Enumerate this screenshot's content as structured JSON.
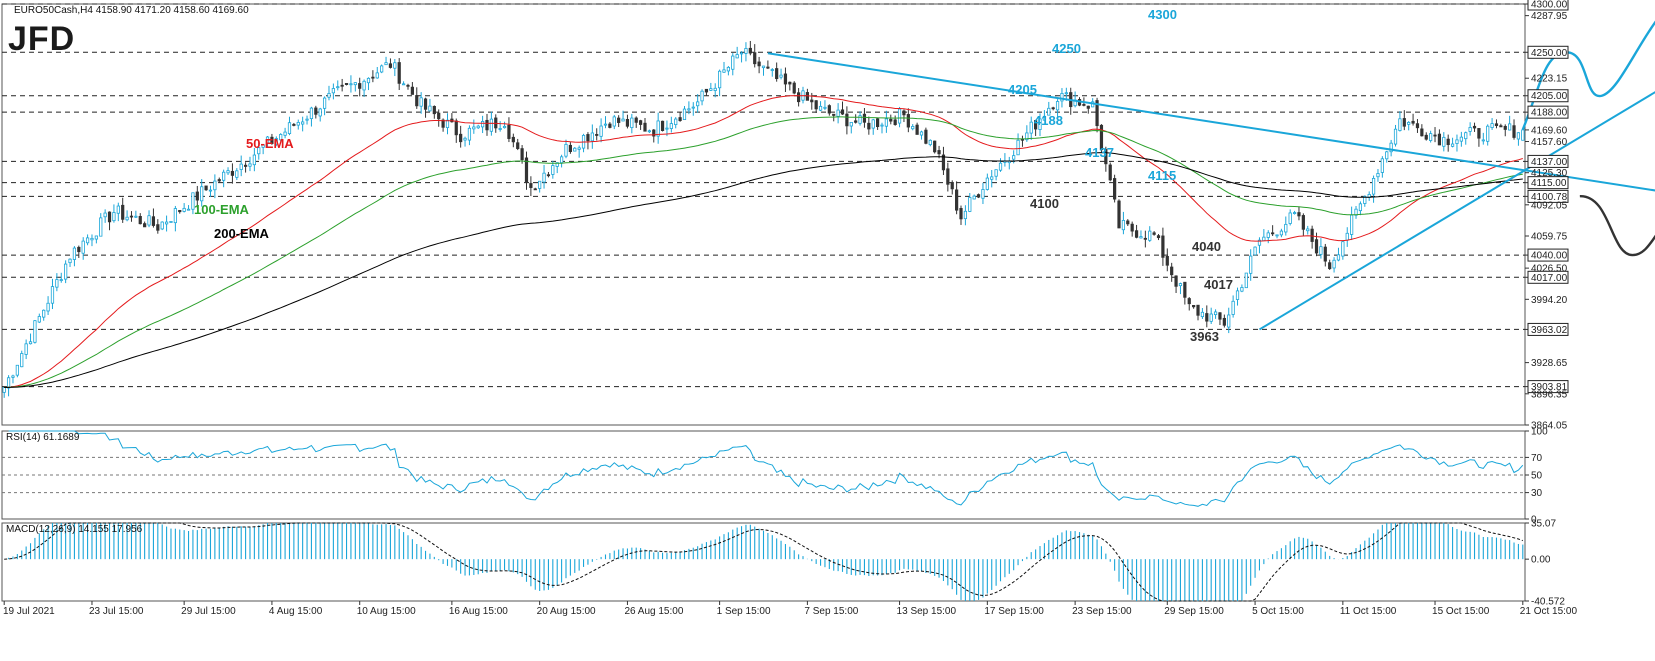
{
  "header": {
    "symbol_line": "EURO50Cash,H4  4158.90 4171.20 4158.60 4169.60",
    "logo": "JFD"
  },
  "colors": {
    "bullish": "#1aa6d9",
    "bearish": "#333333",
    "ema50": "#e41a1c",
    "ema100": "#2ca02c",
    "ema200": "#000000",
    "trendline": "#1aa6d9",
    "projection_up": "#1aa6d9",
    "projection_down": "#333333"
  },
  "chart_data": [
    {
      "type": "candlestick",
      "symbol": "EURO50Cash",
      "timeframe": "H4",
      "ohlc_last": {
        "open": 4158.9,
        "high": 4171.2,
        "low": 4158.6,
        "close": 4169.6
      },
      "ylim": [
        3864.05,
        4300.0
      ],
      "y_ticks": [
        4300.0,
        4287.95,
        4250.0,
        4223.15,
        4205.0,
        4188.0,
        4169.6,
        4157.6,
        4137.0,
        4125.3,
        4115.0,
        4100.78,
        4092.05,
        4059.75,
        4040.0,
        4026.5,
        4017.0,
        3994.2,
        3963.02,
        3928.65,
        3903.81,
        3896.35,
        3864.05
      ],
      "x_labels": [
        "19 Jul 2021",
        "23 Jul 15:00",
        "29 Jul 15:00",
        "4 Aug 15:00",
        "10 Aug 15:00",
        "16 Aug 15:00",
        "20 Aug 15:00",
        "26 Aug 15:00",
        "1 Sep 15:00",
        "7 Sep 15:00",
        "13 Sep 15:00",
        "17 Sep 15:00",
        "23 Sep 15:00",
        "29 Sep 15:00",
        "5 Oct 15:00",
        "11 Oct 15:00",
        "15 Oct 15:00",
        "21 Oct 15:00"
      ],
      "horizontal_levels": [
        4300.0,
        4250.0,
        4205.0,
        4188.0,
        4137.0,
        4115.0,
        4100.78,
        4040.0,
        4017.0,
        3963.02,
        3903.81
      ],
      "price_path_anchors": [
        [
          0,
          3903
        ],
        [
          8,
          3975
        ],
        [
          15,
          4040
        ],
        [
          25,
          4085
        ],
        [
          35,
          4070
        ],
        [
          48,
          4115
        ],
        [
          60,
          4155
        ],
        [
          75,
          4205
        ],
        [
          88,
          4238
        ],
        [
          95,
          4195
        ],
        [
          104,
          4165
        ],
        [
          114,
          4180
        ],
        [
          120,
          4110
        ],
        [
          128,
          4150
        ],
        [
          138,
          4180
        ],
        [
          148,
          4170
        ],
        [
          158,
          4198
        ],
        [
          168,
          4250
        ],
        [
          178,
          4215
        ],
        [
          186,
          4190
        ],
        [
          196,
          4175
        ],
        [
          205,
          4185
        ],
        [
          212,
          4150
        ],
        [
          218,
          4080
        ],
        [
          224,
          4120
        ],
        [
          232,
          4160
        ],
        [
          240,
          4205
        ],
        [
          248,
          4195
        ],
        [
          254,
          4070
        ],
        [
          262,
          4060
        ],
        [
          270,
          3985
        ],
        [
          278,
          3970
        ],
        [
          286,
          4055
        ],
        [
          294,
          4080
        ],
        [
          302,
          4030
        ],
        [
          310,
          4100
        ],
        [
          318,
          4180
        ],
        [
          328,
          4160
        ],
        [
          338,
          4168
        ],
        [
          346,
          4170
        ]
      ],
      "indicators": [
        {
          "name": "50-EMA"
        },
        {
          "name": "100-EMA"
        },
        {
          "name": "200-EMA"
        }
      ],
      "trendlines": [
        {
          "from": [
            174,
            4249
          ],
          "to": [
            460,
            4048
          ]
        },
        {
          "from": [
            286,
            3963
          ],
          "to": [
            388,
            4241
          ]
        }
      ],
      "projections": {
        "up": {
          "labels": [
            "4205",
            "4188",
            "4250",
            "4300"
          ]
        },
        "down": {
          "labels": [
            "4100",
            "4040",
            "4017",
            "3963"
          ]
        }
      },
      "annotations": [
        "4250",
        "4300",
        "4205",
        "4188",
        "4137",
        "4115",
        "4100",
        "4040",
        "4017",
        "3963",
        "50-EMA",
        "100-EMA",
        "200-EMA"
      ]
    },
    {
      "type": "line",
      "title": "RSI(14) 61.1689",
      "ylim": [
        0,
        100
      ],
      "y_ticks": [
        100,
        70,
        50,
        30,
        0
      ],
      "levels": [
        70,
        50,
        30
      ],
      "last_value": 61.1689
    },
    {
      "type": "bar",
      "title": "MACD(12,26,9) 14.155 17.956",
      "ylim": [
        -40.572,
        35.07
      ],
      "y_ticks": [
        35.07,
        0.0,
        -40.572
      ],
      "series": [
        {
          "name": "MACD",
          "last": 14.155
        },
        {
          "name": "Signal",
          "last": 17.956
        }
      ]
    }
  ]
}
